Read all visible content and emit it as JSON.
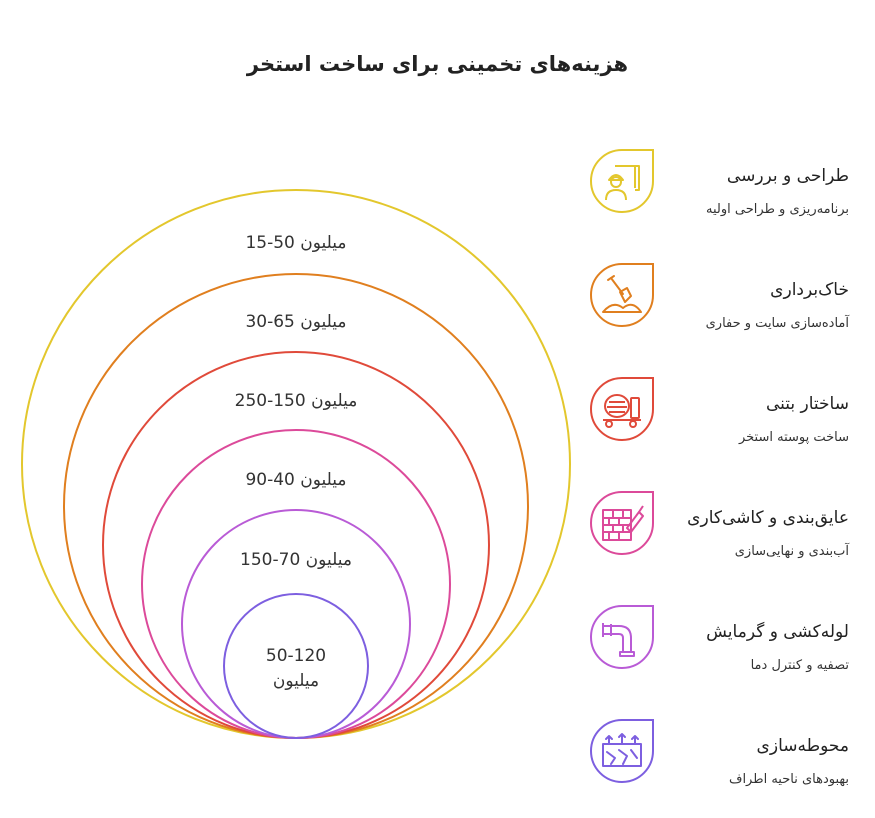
{
  "title": "هزینه‌های تخمینی برای ساخت استخر",
  "rings": [
    {
      "label": "میلیون 50-15",
      "color": "#e3c72d"
    },
    {
      "label": "میلیون 65-30",
      "color": "#e07f1f"
    },
    {
      "label": "میلیون 150-250",
      "color": "#e04a3a"
    },
    {
      "label": "میلیون 40-90",
      "color": "#dc4a9a"
    },
    {
      "label": "میلیون 70-150",
      "color": "#b95bd6"
    },
    {
      "label_line1": "50-120",
      "label_line2": "میلیون",
      "color": "#7d5fe0"
    }
  ],
  "stages": [
    {
      "name": "طراحی و بررسی",
      "description": "برنامه‌ریزی و طراحی اولیه",
      "color": "#e3c72d",
      "icon": "architect-icon"
    },
    {
      "name": "خاک‌برداری",
      "description": "آماده‌سازی سایت و حفاری",
      "color": "#e07f1f",
      "icon": "shovel-dirt-icon"
    },
    {
      "name": "ساختار بتنی",
      "description": "ساخت پوسته استخر",
      "color": "#e04a3a",
      "icon": "concrete-mixer-icon"
    },
    {
      "name": "عایق‌بندی و کاشی‌کاری",
      "description": "آب‌بندی و نهایی‌سازی",
      "color": "#dc4a9a",
      "icon": "brick-trowel-icon"
    },
    {
      "name": "لوله‌کشی و گرمایش",
      "description": "تصفیه و کنترل دما",
      "color": "#b95bd6",
      "icon": "pipe-icon"
    },
    {
      "name": "محوطه‌سازی",
      "description": "بهبودهای ناحیه اطراف",
      "color": "#7d5fe0",
      "icon": "landscaping-icon"
    }
  ]
}
